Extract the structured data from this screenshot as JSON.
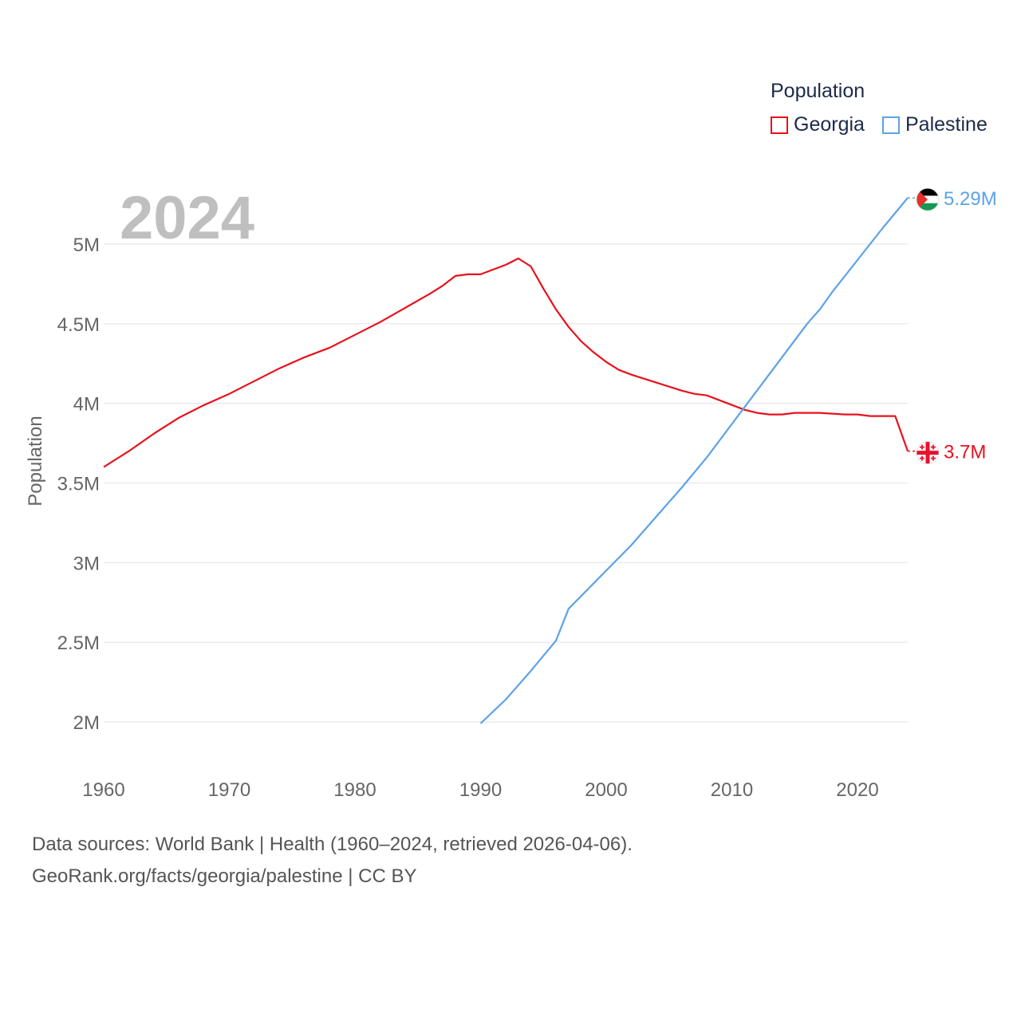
{
  "legend": {
    "title": "Population",
    "items": [
      {
        "label": "Georgia",
        "color": "#e8111c"
      },
      {
        "label": "Palestine",
        "color": "#5ba3e6"
      }
    ]
  },
  "footer": {
    "line1": "Data sources: World Bank | Health (1960–2024, retrieved 2026-04-06).",
    "line2": "GeoRank.org/facts/georgia/palestine | CC BY"
  },
  "chart_data": {
    "type": "line",
    "year_label": "2024",
    "ylabel": "Population",
    "xlabel": "",
    "xlim": [
      1960,
      2024
    ],
    "ylim": [
      1800000,
      5300000
    ],
    "x_ticks": [
      1960,
      1970,
      1980,
      1990,
      2000,
      2010,
      2020
    ],
    "x_tick_labels": [
      "1960",
      "1970",
      "1980",
      "1990",
      "2000",
      "2010",
      "2020"
    ],
    "y_ticks": [
      2000000,
      2500000,
      3000000,
      3500000,
      4000000,
      4500000,
      5000000
    ],
    "y_tick_labels": [
      "2M",
      "2.5M",
      "3M",
      "3.5M",
      "4M",
      "4.5M",
      "5M"
    ],
    "grid": true,
    "series": [
      {
        "name": "Georgia",
        "color": "#e8111c",
        "end_label": "3.7M",
        "flag": "georgia-flag",
        "points": [
          [
            1960,
            3650000
          ],
          [
            1962,
            3750000
          ],
          [
            1964,
            3860000
          ],
          [
            1966,
            3960000
          ],
          [
            1968,
            4040000
          ],
          [
            1970,
            4110000
          ],
          [
            1972,
            4190000
          ],
          [
            1974,
            4270000
          ],
          [
            1976,
            4340000
          ],
          [
            1978,
            4400000
          ],
          [
            1980,
            4480000
          ],
          [
            1982,
            4560000
          ],
          [
            1984,
            4650000
          ],
          [
            1986,
            4740000
          ],
          [
            1987,
            4790000
          ],
          [
            1988,
            4850000
          ],
          [
            1989,
            4860000
          ],
          [
            1990,
            4860000
          ],
          [
            1991,
            4890000
          ],
          [
            1992,
            4920000
          ],
          [
            1993,
            4960000
          ],
          [
            1994,
            4910000
          ],
          [
            1995,
            4770000
          ],
          [
            1996,
            4640000
          ],
          [
            1997,
            4530000
          ],
          [
            1998,
            4440000
          ],
          [
            1999,
            4370000
          ],
          [
            2000,
            4310000
          ],
          [
            2001,
            4260000
          ],
          [
            2002,
            4230000
          ],
          [
            2004,
            4180000
          ],
          [
            2006,
            4130000
          ],
          [
            2007,
            4110000
          ],
          [
            2008,
            4100000
          ],
          [
            2009,
            4070000
          ],
          [
            2010,
            4040000
          ],
          [
            2011,
            4010000
          ],
          [
            2012,
            3990000
          ],
          [
            2013,
            3980000
          ],
          [
            2014,
            3980000
          ],
          [
            2015,
            3990000
          ],
          [
            2017,
            3990000
          ],
          [
            2019,
            3980000
          ],
          [
            2020,
            3980000
          ],
          [
            2021,
            3970000
          ],
          [
            2023,
            3970000
          ],
          [
            2024,
            3700000
          ]
        ]
      },
      {
        "name": "Palestine",
        "color": "#5ba3e6",
        "end_label": "5.29M",
        "flag": "palestine-flag",
        "points": [
          [
            1990,
            1990000
          ],
          [
            1992,
            2140000
          ],
          [
            1994,
            2320000
          ],
          [
            1996,
            2510000
          ],
          [
            1997,
            2710000
          ],
          [
            1998,
            2790000
          ],
          [
            2000,
            2950000
          ],
          [
            2002,
            3110000
          ],
          [
            2004,
            3290000
          ],
          [
            2006,
            3470000
          ],
          [
            2008,
            3660000
          ],
          [
            2010,
            3870000
          ],
          [
            2012,
            4080000
          ],
          [
            2014,
            4290000
          ],
          [
            2016,
            4500000
          ],
          [
            2017,
            4590000
          ],
          [
            2018,
            4700000
          ],
          [
            2020,
            4900000
          ],
          [
            2022,
            5100000
          ],
          [
            2024,
            5290000
          ]
        ]
      }
    ]
  }
}
